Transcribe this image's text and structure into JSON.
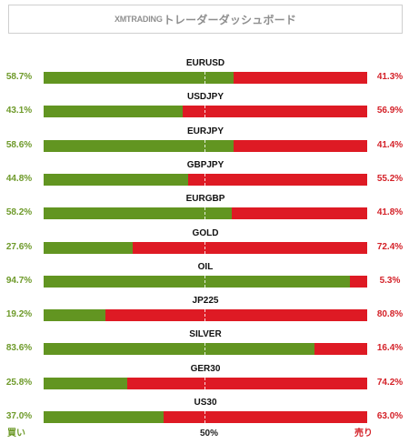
{
  "header": {
    "brand": "XMTRADING",
    "title": "トレーダーダッシュボード"
  },
  "colors": {
    "buy": "#629521",
    "sell": "#de1a24",
    "buy_text": "#6e9a2a",
    "sell_text": "#d42229"
  },
  "rows": [
    {
      "pair": "EURUSD",
      "buy": "58.7%",
      "sell": "41.3%",
      "buy_fraction": 0.587
    },
    {
      "pair": "USDJPY",
      "buy": "43.1%",
      "sell": "56.9%",
      "buy_fraction": 0.431
    },
    {
      "pair": "EURJPY",
      "buy": "58.6%",
      "sell": "41.4%",
      "buy_fraction": 0.586
    },
    {
      "pair": "GBPJPY",
      "buy": "44.8%",
      "sell": "55.2%",
      "buy_fraction": 0.448
    },
    {
      "pair": "EURGBP",
      "buy": "58.2%",
      "sell": "41.8%",
      "buy_fraction": 0.582
    },
    {
      "pair": "GOLD",
      "buy": "27.6%",
      "sell": "72.4%",
      "buy_fraction": 0.276
    },
    {
      "pair": "OIL",
      "buy": "94.7%",
      "sell": "5.3%",
      "buy_fraction": 0.947
    },
    {
      "pair": "JP225",
      "buy": "19.2%",
      "sell": "80.8%",
      "buy_fraction": 0.192
    },
    {
      "pair": "SILVER",
      "buy": "83.6%",
      "sell": "16.4%",
      "buy_fraction": 0.836
    },
    {
      "pair": "GER30",
      "buy": "25.8%",
      "sell": "74.2%",
      "buy_fraction": 0.258
    },
    {
      "pair": "US30",
      "buy": "37.0%",
      "sell": "63.0%",
      "buy_fraction": 0.37
    }
  ],
  "footer": {
    "buy_label": "買い",
    "mid_label": "50%",
    "sell_label": "売り"
  }
}
